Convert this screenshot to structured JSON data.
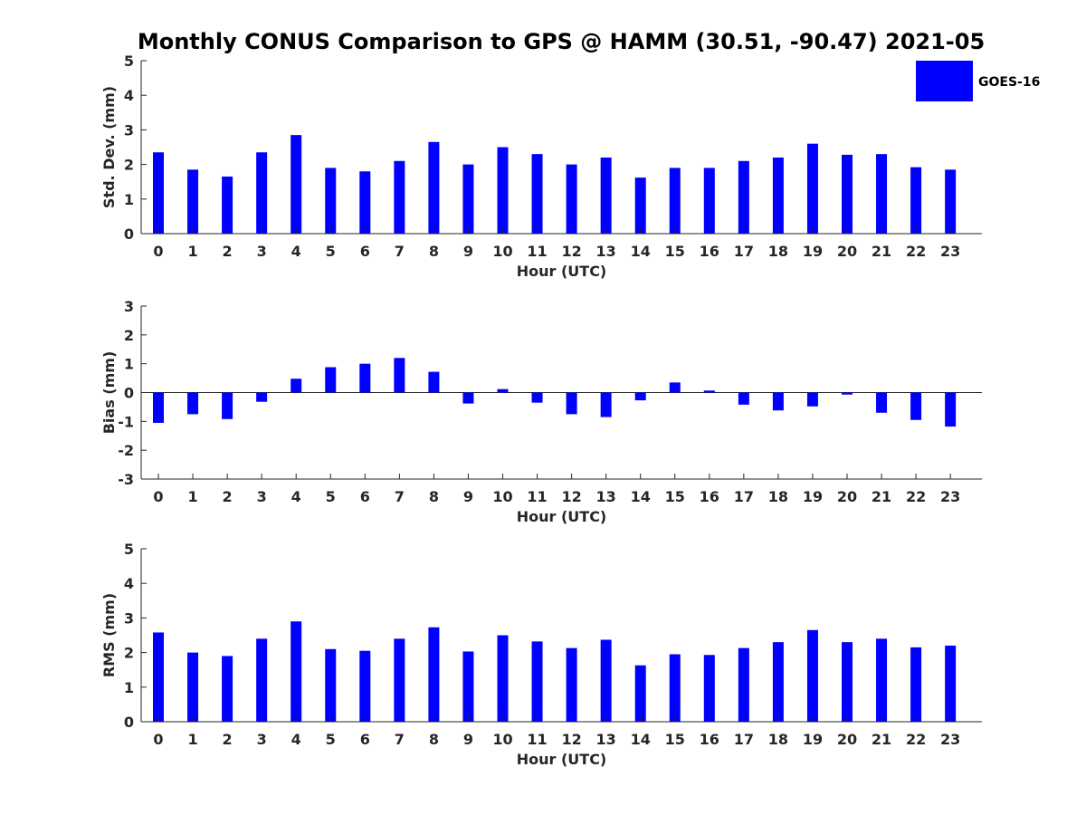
{
  "colors": {
    "bar": "#0000ff",
    "axis": "#262626",
    "background": "#ffffff"
  },
  "chart_data": {
    "title": "Monthly CONUS Comparison to GPS @ HAMM (30.51, -90.47) 2021-05",
    "legend": {
      "label": "GOES-16",
      "placement": "top-right"
    },
    "panels": [
      {
        "id": "std",
        "type": "bar",
        "ylabel": "Std. Dev. (mm)",
        "xlabel": "Hour (UTC)",
        "ylim": [
          0,
          5
        ],
        "yticks": [
          0,
          1,
          2,
          3,
          4,
          5
        ],
        "categories": [
          "0",
          "1",
          "2",
          "3",
          "4",
          "5",
          "6",
          "7",
          "8",
          "9",
          "10",
          "11",
          "12",
          "13",
          "14",
          "15",
          "16",
          "17",
          "18",
          "19",
          "20",
          "21",
          "22",
          "23"
        ],
        "series": [
          {
            "name": "GOES-16",
            "values": [
              2.35,
              1.85,
              1.65,
              2.35,
              2.85,
              1.9,
              1.8,
              2.1,
              2.65,
              2.0,
              2.5,
              2.3,
              2.0,
              2.2,
              1.62,
              1.9,
              1.9,
              2.1,
              2.2,
              2.6,
              2.28,
              2.3,
              1.92,
              1.85
            ]
          }
        ]
      },
      {
        "id": "bias",
        "type": "bar",
        "ylabel": "Bias (mm)",
        "xlabel": "Hour (UTC)",
        "ylim": [
          -3,
          3
        ],
        "yticks": [
          -3,
          -2,
          -1,
          0,
          1,
          2,
          3
        ],
        "categories": [
          "0",
          "1",
          "2",
          "3",
          "4",
          "5",
          "6",
          "7",
          "8",
          "9",
          "10",
          "11",
          "12",
          "13",
          "14",
          "15",
          "16",
          "17",
          "18",
          "19",
          "20",
          "21",
          "22",
          "23"
        ],
        "series": [
          {
            "name": "GOES-16",
            "values": [
              -1.05,
              -0.75,
              -0.92,
              -0.32,
              0.48,
              0.88,
              1.0,
              1.2,
              0.72,
              -0.38,
              0.12,
              -0.35,
              -0.75,
              -0.85,
              -0.27,
              0.35,
              0.07,
              -0.42,
              -0.62,
              -0.48,
              -0.07,
              -0.7,
              -0.95,
              -1.18
            ]
          }
        ]
      },
      {
        "id": "rms",
        "type": "bar",
        "ylabel": "RMS (mm)",
        "xlabel": "Hour (UTC)",
        "ylim": [
          0,
          5
        ],
        "yticks": [
          0,
          1,
          2,
          3,
          4,
          5
        ],
        "categories": [
          "0",
          "1",
          "2",
          "3",
          "4",
          "5",
          "6",
          "7",
          "8",
          "9",
          "10",
          "11",
          "12",
          "13",
          "14",
          "15",
          "16",
          "17",
          "18",
          "19",
          "20",
          "21",
          "22",
          "23"
        ],
        "series": [
          {
            "name": "GOES-16",
            "values": [
              2.58,
              2.0,
              1.9,
              2.4,
              2.9,
              2.1,
              2.05,
              2.4,
              2.73,
              2.03,
              2.5,
              2.32,
              2.13,
              2.37,
              1.63,
              1.95,
              1.93,
              2.13,
              2.3,
              2.65,
              2.3,
              2.4,
              2.15,
              2.2
            ]
          }
        ]
      }
    ]
  }
}
